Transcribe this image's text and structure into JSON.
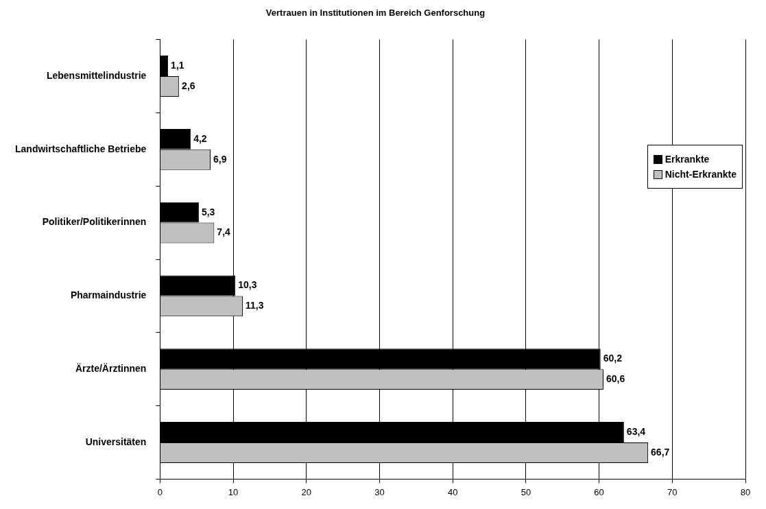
{
  "chart_data": {
    "type": "bar",
    "orientation": "horizontal",
    "title": "Vertrauen in Institutionen im Bereich Genforschung",
    "categories": [
      "Lebensmittelindustrie",
      "Landwirtschaftliche Betriebe",
      "Politiker/Politikerinnen",
      "Pharmaindustrie",
      "Ärzte/Ärztinnen",
      "Universitäten"
    ],
    "series": [
      {
        "name": "Erkrankte",
        "color": "#000000",
        "values": [
          1.1,
          4.2,
          5.3,
          10.3,
          60.2,
          63.4
        ],
        "value_labels": [
          "1,1",
          "4,2",
          "5,3",
          "10,3",
          "60,2",
          "63,4"
        ]
      },
      {
        "name": "Nicht-Erkrankte",
        "color": "#c0c0c0",
        "values": [
          2.6,
          6.9,
          7.4,
          11.3,
          60.6,
          66.7
        ],
        "value_labels": [
          "2,6",
          "6,9",
          "7,4",
          "11,3",
          "60,6",
          "66,7"
        ]
      }
    ],
    "xlim": [
      0,
      80
    ],
    "xticks": [
      0,
      10,
      20,
      30,
      40,
      50,
      60,
      70,
      80
    ],
    "grid": "x",
    "legend": "right"
  }
}
